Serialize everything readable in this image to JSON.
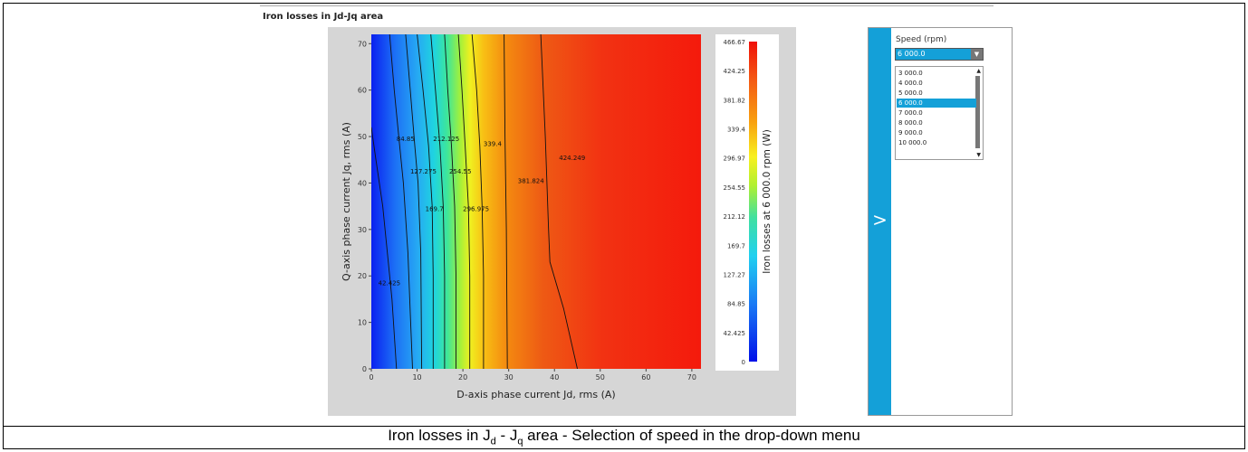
{
  "chart_title": "Iron losses in Jd-Jq area",
  "caption": {
    "prefix": "Iron losses in J",
    "sub1": "d",
    "middle": " - J",
    "sub2": "q",
    "suffix": " area - Selection of speed in the drop-down menu"
  },
  "speed_panel": {
    "label": "Speed (rpm)",
    "selected_value": "6 000.0",
    "expand_glyph": ">",
    "options": [
      "3 000.0",
      "4 000.0",
      "5 000.0",
      "6 000.0",
      "7 000.0",
      "8 000.0",
      "9 000.0",
      "10 000.0"
    ],
    "selected_index": 3
  },
  "icons": {
    "expand": "chevron-right-icon",
    "dropdown": "dropdown-arrow-icon",
    "scroll_up": "scroll-up-icon",
    "scroll_down": "scroll-down-icon"
  },
  "colors": {
    "accent": "#14a0d8",
    "panel_bg": "#d6d6d6"
  },
  "chart_data": {
    "type": "heatmap",
    "xlabel": "D-axis phase current Jd, rms (A)",
    "ylabel": "Q-axis phase current Jq, rms (A)",
    "colorbar_label": "Iron losses at 6 000.0 rpm (W)",
    "xlim": [
      0,
      72
    ],
    "ylim": [
      0,
      72
    ],
    "x_ticks": [
      0,
      10,
      20,
      30,
      40,
      50,
      60,
      70
    ],
    "y_ticks": [
      0,
      10,
      20,
      30,
      40,
      50,
      60,
      70
    ],
    "colorbar_range": [
      0,
      466.67
    ],
    "colorbar_ticks": [
      "0",
      "42.425",
      "84.85",
      "127.27",
      "169.7",
      "212.12",
      "254.55",
      "296.97",
      "339.4",
      "381.82",
      "424.25",
      "466.67"
    ],
    "contours": [
      {
        "level": "42.425",
        "label_at": [
          1.5,
          18
        ],
        "points": [
          [
            0,
            52
          ],
          [
            1,
            45
          ],
          [
            2.5,
            35
          ],
          [
            3.5,
            25
          ],
          [
            4.5,
            15
          ],
          [
            5.5,
            0
          ]
        ]
      },
      {
        "level": "84.85",
        "label_at": [
          5.5,
          49
        ],
        "points": [
          [
            4,
            72
          ],
          [
            5,
            60
          ],
          [
            6,
            50
          ],
          [
            7,
            40
          ],
          [
            8,
            25
          ],
          [
            8.5,
            12
          ],
          [
            9,
            0
          ]
        ]
      },
      {
        "level": "127.275",
        "label_at": [
          8.5,
          42
        ],
        "points": [
          [
            7.5,
            72
          ],
          [
            8.5,
            60
          ],
          [
            9.5,
            48
          ],
          [
            10.2,
            40
          ],
          [
            10.8,
            25
          ],
          [
            11,
            0
          ]
        ]
      },
      {
        "level": "169.7",
        "label_at": [
          11.8,
          34
        ],
        "points": [
          [
            10,
            72
          ],
          [
            11.3,
            60
          ],
          [
            12.5,
            48
          ],
          [
            13.3,
            35
          ],
          [
            13.5,
            20
          ],
          [
            13.5,
            0
          ]
        ]
      },
      {
        "level": "212.125",
        "label_at": [
          13.5,
          49
        ],
        "points": [
          [
            13,
            72
          ],
          [
            14,
            60
          ],
          [
            15,
            48
          ],
          [
            15.7,
            35
          ],
          [
            16,
            20
          ],
          [
            16,
            0
          ]
        ]
      },
      {
        "level": "254.55",
        "label_at": [
          17,
          42
        ],
        "points": [
          [
            16,
            72
          ],
          [
            16.7,
            60
          ],
          [
            17.5,
            48
          ],
          [
            18.2,
            35
          ],
          [
            18.5,
            20
          ],
          [
            18.5,
            0
          ]
        ]
      },
      {
        "level": "296.975",
        "label_at": [
          20,
          34
        ],
        "points": [
          [
            19,
            72
          ],
          [
            19.8,
            60
          ],
          [
            20.5,
            48
          ],
          [
            21.2,
            35
          ],
          [
            21.5,
            20
          ],
          [
            21.5,
            0
          ]
        ]
      },
      {
        "level": "339.4",
        "label_at": [
          24.5,
          48
        ],
        "points": [
          [
            22,
            72
          ],
          [
            23,
            60
          ],
          [
            23.7,
            48
          ],
          [
            24.2,
            35
          ],
          [
            24.5,
            20
          ],
          [
            24.5,
            0
          ]
        ]
      },
      {
        "level": "381.824",
        "label_at": [
          32,
          40
        ],
        "points": [
          [
            29,
            72
          ],
          [
            29.2,
            50
          ],
          [
            29.5,
            30
          ],
          [
            29.7,
            0
          ]
        ]
      },
      {
        "level": "424.249",
        "label_at": [
          41,
          45
        ],
        "points": [
          [
            37,
            72
          ],
          [
            38,
            50
          ],
          [
            38.7,
            30
          ],
          [
            39,
            23
          ],
          [
            42,
            13
          ],
          [
            45,
            0
          ]
        ]
      }
    ]
  }
}
